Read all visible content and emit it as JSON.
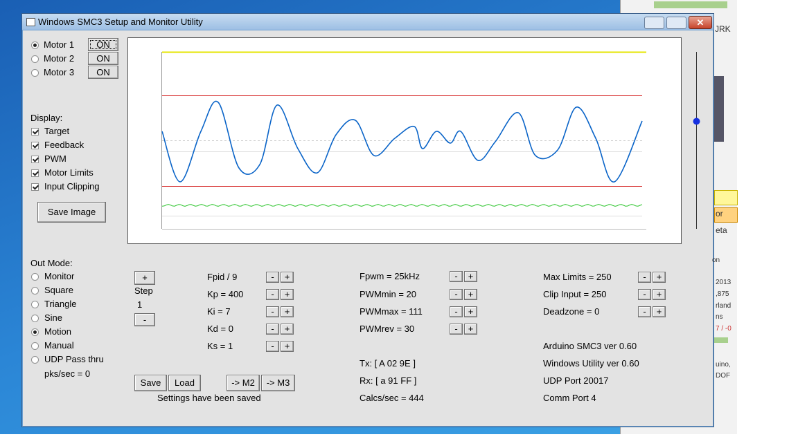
{
  "window": {
    "title": "Windows SMC3 Setup and Monitor Utility"
  },
  "motors": [
    {
      "label": "Motor 1",
      "button": "ON",
      "selected": true
    },
    {
      "label": "Motor 2",
      "button": "ON",
      "selected": false
    },
    {
      "label": "Motor 3",
      "button": "ON",
      "selected": false
    }
  ],
  "display": {
    "label": "Display:",
    "options": [
      {
        "label": "Target",
        "checked": true
      },
      {
        "label": "Feedback",
        "checked": true
      },
      {
        "label": "PWM",
        "checked": true
      },
      {
        "label": "Motor Limits",
        "checked": true
      },
      {
        "label": "Input Clipping",
        "checked": true
      }
    ]
  },
  "save_image": "Save Image",
  "out_mode": {
    "label": "Out Mode:",
    "options": [
      {
        "label": "Monitor",
        "selected": false
      },
      {
        "label": "Square",
        "selected": false
      },
      {
        "label": "Triangle",
        "selected": false
      },
      {
        "label": "Sine",
        "selected": false
      },
      {
        "label": "Motion",
        "selected": true
      },
      {
        "label": "Manual",
        "selected": false
      },
      {
        "label": "UDP Pass thru",
        "selected": false
      }
    ],
    "status": "pks/sec = 0"
  },
  "step": {
    "plus": "+",
    "label": "Step",
    "value": "1",
    "minus": "-"
  },
  "adjust": {
    "minus": "-",
    "plus": "+"
  },
  "pid_params": [
    "Fpid / 9",
    "Kp = 400",
    "Ki = 7",
    "Kd = 0",
    "Ks = 1"
  ],
  "pwm_params": [
    "Fpwm = 25kHz",
    "PWMmin = 20",
    "PWMmax = 111",
    "PWMrev = 30"
  ],
  "limit_params": [
    "Max Limits = 250",
    "Clip Input = 250",
    "Deadzone = 0"
  ],
  "comm": [
    "Tx: [ A 02 9E ]",
    "Rx: [ a 91 FF ]",
    "Calcs/sec = 444"
  ],
  "info": [
    "Arduino SMC3 ver 0.60",
    "Windows Utility ver 0.60",
    "UDP Port 20017",
    "Comm Port 4"
  ],
  "buttons": [
    "Save",
    "Load",
    "-> M2",
    "-> M3"
  ],
  "status": "Settings have been saved",
  "background_window": {
    "texts": [
      "JRK",
      "or",
      "eta",
      "on",
      "2013",
      ",875",
      "rland",
      "ns",
      "7 / -0",
      "uino,",
      "DOF"
    ]
  }
}
